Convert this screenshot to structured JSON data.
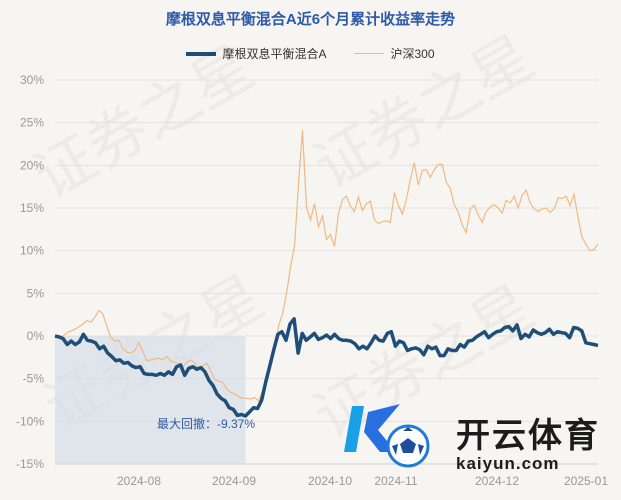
{
  "chart_data": {
    "type": "line",
    "title": "摩根双息平衡混合A近6个月累计收益率走势",
    "legend_position": "top-center",
    "grid": true,
    "xlabel": "",
    "ylabel": "",
    "ylim": [
      -15,
      30
    ],
    "y_ticks": [
      "30%",
      "25%",
      "20%",
      "15%",
      "10%",
      "5%",
      "0%",
      "-5%",
      "-10%",
      "-15%"
    ],
    "x_ticks": [
      "2024-08",
      "2024-09",
      "2024-10",
      "2024-11",
      "2024-12",
      "2025-01"
    ],
    "annotation": "最大回撤：-9.37%",
    "series": [
      {
        "name": "摩根双息平衡混合A",
        "color": "#1f4e79",
        "values": [
          0,
          -0.1,
          -0.3,
          -1,
          -0.6,
          -1,
          -0.7,
          0.2,
          -0.5,
          -0.6,
          -0.8,
          -1.5,
          -1.2,
          -2,
          -2.4,
          -2.9,
          -2.8,
          -3.2,
          -3.1,
          -3.5,
          -3.7,
          -3.6,
          -4.4,
          -4.5,
          -4.5,
          -4.6,
          -4.4,
          -4.6,
          -4.2,
          -4.5,
          -3.6,
          -3.4,
          -4.6,
          -3.8,
          -3.6,
          -3.9,
          -3.7,
          -4.2,
          -5.2,
          -5.8,
          -6.8,
          -7.3,
          -7.6,
          -8.4,
          -8.6,
          -9.3,
          -9.2,
          -9.37,
          -8.9,
          -8.4,
          -8.5,
          -7.5,
          -5.4,
          -3.5,
          -1.6,
          0.2,
          0.5,
          -0.5,
          1.4,
          2,
          -2,
          0.3,
          -0.5,
          -0.1,
          0.3,
          -0.4,
          -0.2,
          0.1,
          -0.3,
          0.2,
          -0.3,
          -0.5,
          -0.5,
          -0.6,
          -0.9,
          -1.5,
          -1.2,
          -1.5,
          -0.8,
          0,
          -0.5,
          -0.6,
          0.3,
          0.5,
          -1.2,
          -0.6,
          -0.8,
          -1.7,
          -1.5,
          -1.4,
          -1.6,
          -2.2,
          -1.2,
          -1.5,
          -1.3,
          -2.3,
          -2.3,
          -1.5,
          -1.7,
          -1.7,
          -1,
          -1.3,
          -0.6,
          -0.5,
          -0.1,
          0.2,
          0.5,
          -0.2,
          0.2,
          0.5,
          0.6,
          1,
          1.1,
          0.6,
          1.3,
          -0.3,
          0.2,
          -0.1,
          0.7,
          0.4,
          0.2,
          0.4,
          0.8,
          0.2,
          0.5,
          0.4,
          0.3,
          -0.2,
          1,
          0.9,
          0.6,
          -0.8,
          -0.9,
          -1,
          -1.1
        ]
      },
      {
        "name": "沪深300",
        "color": "#f0b982",
        "values": [
          0,
          -0.2,
          0,
          0.4,
          0.6,
          0.8,
          1.1,
          1.4,
          1.8,
          1.6,
          2.2,
          3,
          2.6,
          1.1,
          -0.2,
          -0.6,
          -0.5,
          -1.5,
          -1.9,
          -2,
          -1.7,
          -0.8,
          -1.8,
          -2.9,
          -2.8,
          -2.7,
          -2.6,
          -2.8,
          -2.4,
          -2.9,
          -3.1,
          -3.2,
          -3.6,
          -3.1,
          -2.8,
          -3.2,
          -3.9,
          -3.5,
          -3.2,
          -4.1,
          -5.1,
          -5.3,
          -5.4,
          -6.2,
          -6.6,
          -6.8,
          -7.1,
          -7.3,
          -7.3,
          -7.4,
          -7.2,
          -7.6,
          -6.5,
          -5,
          -3.2,
          -1.5,
          1.2,
          2.6,
          5,
          8.2,
          10.6,
          18,
          24.1,
          15.1,
          13.6,
          15.5,
          12.8,
          14.1,
          11.3,
          11.9,
          10.5,
          14.4,
          16,
          16.4,
          15.2,
          14.6,
          16.3,
          14.7,
          15.5,
          15.8,
          13.6,
          13.2,
          13.4,
          13.5,
          13.3,
          16.8,
          15.3,
          14.3,
          16,
          18.3,
          20.3,
          17.7,
          19.4,
          19.5,
          18.6,
          19.5,
          20.1,
          20.1,
          18,
          17.3,
          15.4,
          14.5,
          13,
          12.1,
          14.9,
          15.3,
          14.2,
          13.3,
          14.6,
          15.1,
          15.4,
          15,
          14.4,
          15.9,
          15.6,
          16.4,
          15,
          16.5,
          17.1,
          15.6,
          14.9,
          14.6,
          14.9,
          15,
          14.5,
          14.9,
          16.2,
          16.1,
          16.4,
          15.3,
          16.6,
          13.9,
          11.6,
          10.7,
          10,
          10.1,
          10.8
        ]
      }
    ]
  },
  "watermark": {
    "text": "证券之星"
  },
  "logo": {
    "name": "开云体育",
    "url": "kaiyun.com"
  }
}
